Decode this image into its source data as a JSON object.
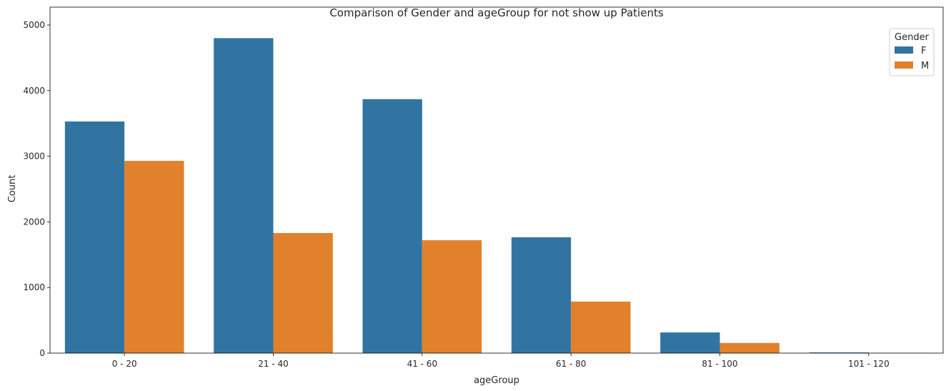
{
  "chart_data": {
    "type": "bar",
    "title": "Comparison of Gender and ageGroup for not show up Patients",
    "xlabel": "ageGroup",
    "ylabel": "Count",
    "categories": [
      "0 - 20",
      "21 - 40",
      "41 - 60",
      "61 - 80",
      "81 - 100",
      "101 - 120"
    ],
    "series": [
      {
        "name": "F",
        "values": [
          3530,
          4800,
          3870,
          1765,
          315,
          10
        ],
        "color": "#3274a1"
      },
      {
        "name": "M",
        "values": [
          2930,
          1830,
          1720,
          785,
          155,
          2
        ],
        "color": "#e1812c"
      }
    ],
    "ylim": [
      0,
      5000
    ],
    "yticks": [
      0,
      1000,
      2000,
      3000,
      4000,
      5000
    ],
    "grid": false,
    "legend": {
      "title": "Gender",
      "placement": "top-right"
    }
  }
}
